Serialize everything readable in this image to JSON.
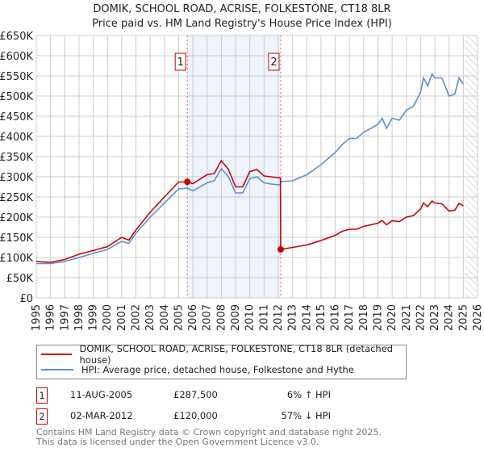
{
  "chart_data": {
    "type": "line",
    "title": "DOMIK, SCHOOL ROAD, ACRISE, FOLKESTONE, CT18 8LR",
    "subtitle": "Price paid vs. HM Land Registry's House Price Index (HPI)",
    "xlim": [
      1995,
      2026
    ],
    "ylim": [
      0,
      650000
    ],
    "yticks": [
      0,
      50000,
      100000,
      150000,
      200000,
      250000,
      300000,
      350000,
      400000,
      450000,
      500000,
      550000,
      600000,
      650000
    ],
    "ytick_labels": [
      "£0",
      "£50K",
      "£100K",
      "£150K",
      "£200K",
      "£250K",
      "£300K",
      "£350K",
      "£400K",
      "£450K",
      "£500K",
      "£550K",
      "£600K",
      "£650K"
    ],
    "xticks": [
      "1995",
      "1996",
      "1997",
      "1998",
      "1999",
      "2000",
      "2001",
      "2002",
      "2003",
      "2004",
      "2005",
      "2006",
      "2007",
      "2008",
      "2009",
      "2010",
      "2011",
      "2012",
      "2013",
      "2014",
      "2015",
      "2016",
      "2017",
      "2018",
      "2019",
      "2020",
      "2021",
      "2022",
      "2023",
      "2024",
      "2025",
      "2026"
    ],
    "grid": true,
    "shaded_range": [
      2005.61,
      2012.17
    ],
    "hatched_from": 2025.1,
    "series": [
      {
        "name": "DOMIK, SCHOOL ROAD, ACRISE, FOLKESTONE, CT18 8LR (detached house)",
        "color": "#cc0000",
        "x": [
          1995,
          1996,
          1997,
          1998,
          1999,
          2000,
          2001,
          2001.5,
          2002,
          2003,
          2004,
          2005,
          2005.61,
          2006,
          2007,
          2007.5,
          2008,
          2008.5,
          2009,
          2009.5,
          2010,
          2010.5,
          2011,
          2011.5,
          2012.15,
          2012.17,
          2013,
          2014,
          2015,
          2016,
          2016.5,
          2017,
          2017.5,
          2018,
          2019,
          2019.3,
          2019.6,
          2020,
          2020.5,
          2021,
          2021.5,
          2022,
          2022.2,
          2022.5,
          2022.8,
          2023,
          2023.5,
          2024,
          2024.4,
          2024.7,
          2025
        ],
        "y": [
          90000,
          88000,
          95000,
          108000,
          117000,
          127000,
          150000,
          143000,
          168000,
          212000,
          250000,
          287000,
          287500,
          283000,
          305000,
          308000,
          340000,
          318000,
          275000,
          275000,
          313000,
          318000,
          302000,
          300000,
          297000,
          120000,
          125000,
          131000,
          142000,
          155000,
          165000,
          170000,
          170000,
          177000,
          185000,
          192000,
          181000,
          191000,
          189000,
          200000,
          204000,
          220000,
          235000,
          226000,
          240000,
          235000,
          233000,
          215000,
          217000,
          234000,
          228000
        ]
      },
      {
        "name": "HPI: Average price, detached house, Folkestone and Hythe",
        "color": "#5b8fd4",
        "x": [
          1995,
          1996,
          1997,
          1998,
          1999,
          2000,
          2001,
          2001.5,
          2002,
          2003,
          2004,
          2005,
          2005.61,
          2006,
          2007,
          2007.5,
          2008,
          2008.5,
          2009,
          2009.5,
          2010,
          2010.5,
          2011,
          2011.5,
          2012.15,
          2012.2,
          2013,
          2014,
          2015,
          2016,
          2016.5,
          2017,
          2017.5,
          2018,
          2019,
          2019.3,
          2019.6,
          2020,
          2020.5,
          2021,
          2021.5,
          2022,
          2022.2,
          2022.5,
          2022.8,
          2023,
          2023.5,
          2024,
          2024.4,
          2024.7,
          2025
        ],
        "y": [
          85000,
          85000,
          90000,
          100000,
          110000,
          120000,
          140000,
          135000,
          160000,
          200000,
          235000,
          270000,
          272000,
          265000,
          285000,
          290000,
          320000,
          300000,
          260000,
          260000,
          295000,
          300000,
          285000,
          282000,
          280000,
          288000,
          290000,
          305000,
          330000,
          360000,
          380000,
          395000,
          395000,
          410000,
          430000,
          445000,
          420000,
          445000,
          440000,
          465000,
          475000,
          510000,
          545000,
          525000,
          555000,
          545000,
          545000,
          500000,
          505000,
          545000,
          530000
        ]
      }
    ],
    "sales": [
      {
        "label": "1",
        "x": 2005.61,
        "y": 287500,
        "date": "11-AUG-2005",
        "price": "£287,500",
        "hpi": "6% ↑ HPI"
      },
      {
        "label": "2",
        "x": 2012.17,
        "y": 120000,
        "date": "02-MAR-2012",
        "price": "£120,000",
        "hpi": "57% ↓ HPI"
      }
    ]
  },
  "footer": {
    "line1": "Contains HM Land Registry data © Crown copyright and database right 2025.",
    "line2": "This data is licensed under the Open Government Licence v3.0."
  }
}
